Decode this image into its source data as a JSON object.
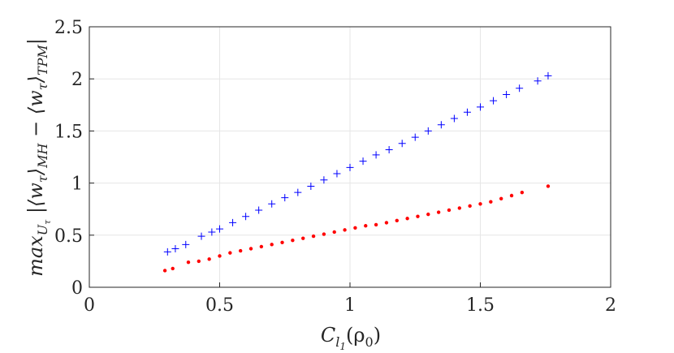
{
  "chart_data": {
    "type": "scatter",
    "title": "",
    "xlabel": "C_{l_1}(ρ_0)",
    "ylabel": "max_{U_τ} |⟨w_τ⟩_{MH} − ⟨w_τ⟩_{TPM}|",
    "xlim": [
      0,
      2
    ],
    "ylim": [
      0,
      2.5
    ],
    "xticks": [
      0,
      0.5,
      1,
      1.5,
      2
    ],
    "yticks": [
      0,
      0.5,
      1,
      1.5,
      2,
      2.5
    ],
    "xtick_labels": [
      "0",
      "0.5",
      "1",
      "1.5",
      "2"
    ],
    "ytick_labels": [
      "0",
      "0.5",
      "1",
      "1.5",
      "2",
      "2.5"
    ],
    "grid": true,
    "series": [
      {
        "name": "blue-plus",
        "marker": "+",
        "color": "#0000ff",
        "x": [
          0.3,
          0.33,
          0.37,
          0.43,
          0.47,
          0.5,
          0.55,
          0.6,
          0.65,
          0.7,
          0.75,
          0.8,
          0.85,
          0.9,
          0.95,
          1.0,
          1.05,
          1.1,
          1.15,
          1.2,
          1.25,
          1.3,
          1.35,
          1.4,
          1.45,
          1.5,
          1.55,
          1.6,
          1.65,
          1.72,
          1.76
        ],
        "y": [
          0.34,
          0.37,
          0.41,
          0.49,
          0.53,
          0.56,
          0.62,
          0.68,
          0.74,
          0.8,
          0.86,
          0.91,
          0.97,
          1.03,
          1.09,
          1.15,
          1.21,
          1.27,
          1.32,
          1.38,
          1.44,
          1.5,
          1.56,
          1.62,
          1.68,
          1.73,
          1.79,
          1.85,
          1.91,
          1.98,
          2.03
        ]
      },
      {
        "name": "red-dots",
        "marker": "o",
        "color": "#ff0000",
        "x": [
          0.29,
          0.32,
          0.38,
          0.42,
          0.46,
          0.5,
          0.54,
          0.58,
          0.62,
          0.66,
          0.7,
          0.74,
          0.78,
          0.82,
          0.86,
          0.9,
          0.94,
          0.98,
          1.02,
          1.06,
          1.1,
          1.14,
          1.18,
          1.22,
          1.26,
          1.3,
          1.34,
          1.38,
          1.42,
          1.46,
          1.5,
          1.54,
          1.58,
          1.62,
          1.66,
          1.76
        ],
        "y": [
          0.16,
          0.18,
          0.24,
          0.25,
          0.27,
          0.3,
          0.33,
          0.35,
          0.37,
          0.39,
          0.41,
          0.43,
          0.45,
          0.47,
          0.49,
          0.51,
          0.53,
          0.55,
          0.57,
          0.59,
          0.6,
          0.62,
          0.64,
          0.66,
          0.68,
          0.7,
          0.72,
          0.74,
          0.76,
          0.78,
          0.8,
          0.82,
          0.85,
          0.88,
          0.91,
          0.97
        ]
      }
    ]
  }
}
